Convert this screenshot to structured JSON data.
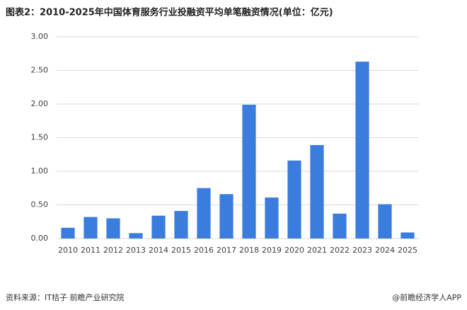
{
  "chart_data": {
    "type": "bar",
    "title": "图表2：2010-2025年中国体育服务行业投融资平均单笔融资情况(单位：亿元)",
    "categories": [
      "2010",
      "2011",
      "2012",
      "2013",
      "2014",
      "2015",
      "2016",
      "2017",
      "2018",
      "2019",
      "2020",
      "2021",
      "2022",
      "2023",
      "2024",
      "2025"
    ],
    "values": [
      0.16,
      0.32,
      0.3,
      0.08,
      0.34,
      0.41,
      0.75,
      0.66,
      1.99,
      0.61,
      1.16,
      1.39,
      0.37,
      2.63,
      0.51,
      0.09
    ],
    "color": "#3b7ddd",
    "ylim": [
      0,
      3
    ],
    "yticks": [
      {
        "value": 0,
        "label": "0.00"
      },
      {
        "value": 0.5,
        "label": "0.50"
      },
      {
        "value": 1,
        "label": "1.00"
      },
      {
        "value": 1.5,
        "label": "1.50"
      },
      {
        "value": 2,
        "label": "2.00"
      },
      {
        "value": 2.5,
        "label": "2.50"
      },
      {
        "value": 3,
        "label": "3.00"
      }
    ],
    "grid": true,
    "source": "资料来源：IT桔子 前瞻产业研究院",
    "credit": "@前瞻经济学人APP"
  }
}
